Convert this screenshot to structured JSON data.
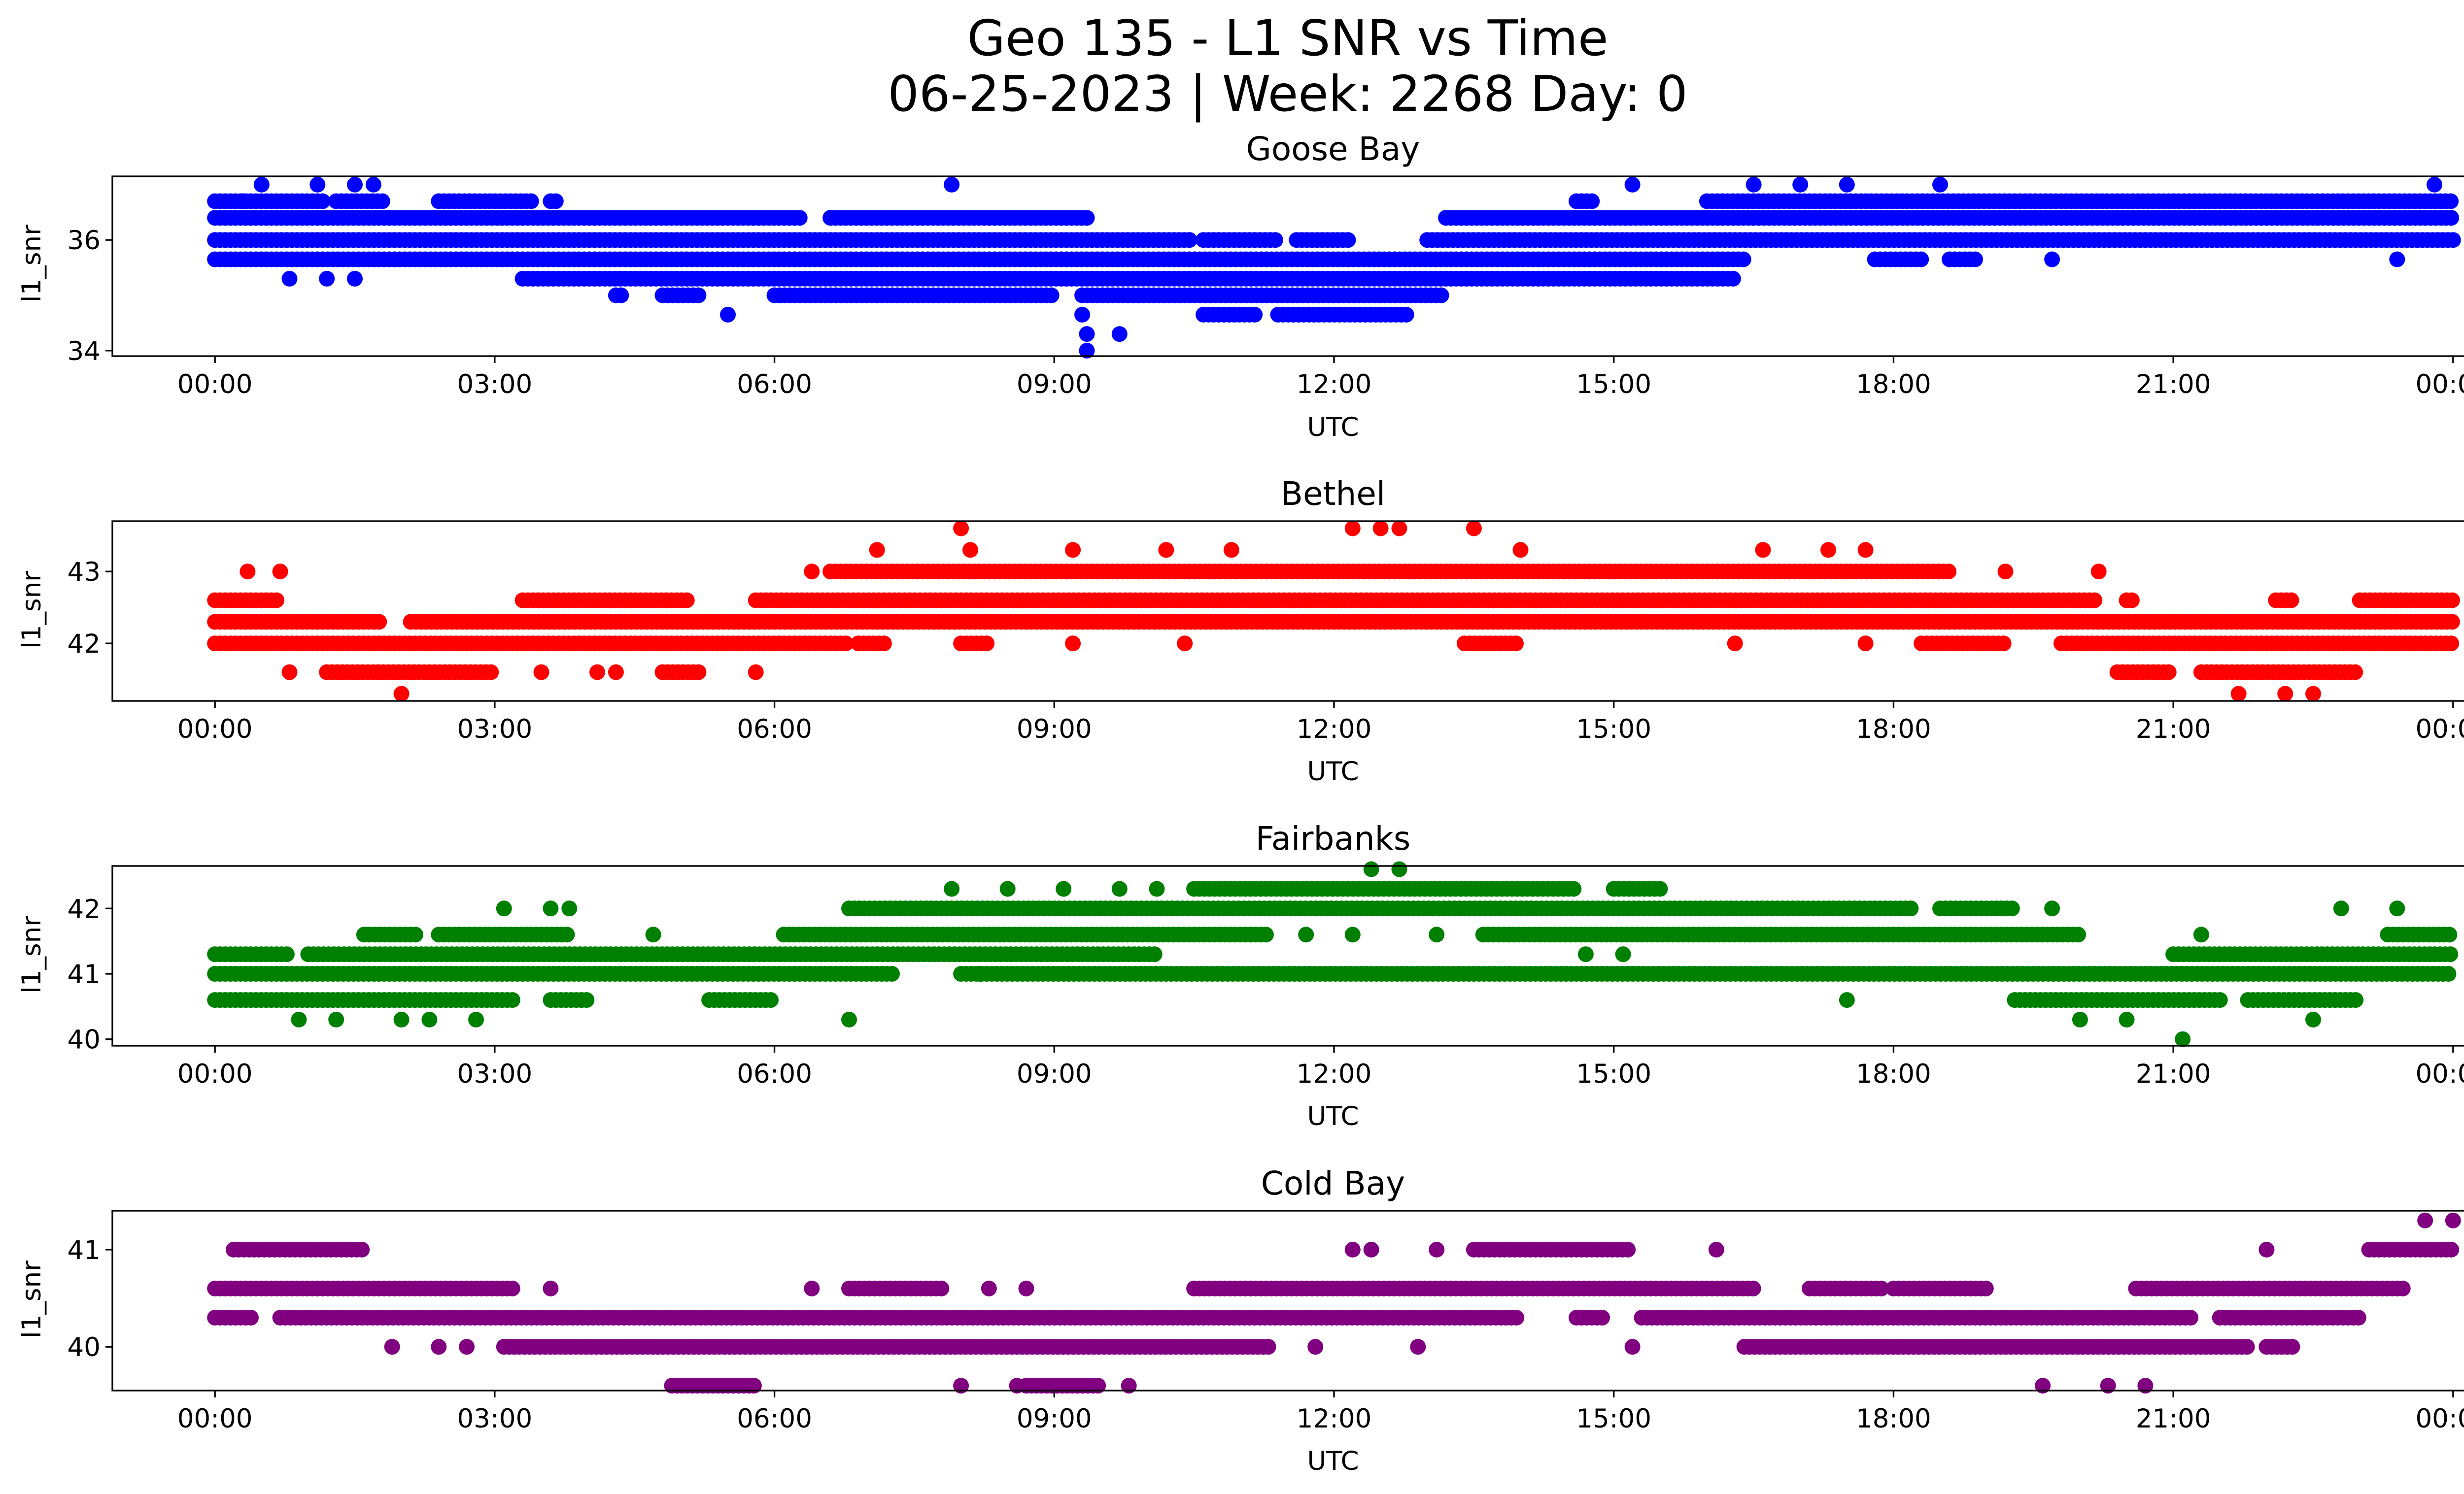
{
  "figure": {
    "title_line1": "Geo 135 - L1 SNR vs Time",
    "title_line2": "06-25-2023 | Week: 2268 Day: 0"
  },
  "chart_data": [
    {
      "type": "scatter",
      "title": "Goose Bay",
      "xlabel": "UTC",
      "ylabel": "l1_snr",
      "x_unit": "hours UTC",
      "xlim": [
        -1.1,
        25.1
      ],
      "ylim": [
        33.9,
        37.15
      ],
      "xticks": [
        0,
        3,
        6,
        9,
        12,
        15,
        18,
        21,
        24
      ],
      "xtick_labels": [
        "00:00",
        "03:00",
        "06:00",
        "09:00",
        "12:00",
        "15:00",
        "18:00",
        "21:00",
        "00:00"
      ],
      "yticks": [
        34,
        36
      ],
      "ytick_labels": [
        "34",
        "36"
      ],
      "color": "#0000ff",
      "bands": [
        {
          "y": 36.7,
          "ranges": [
            [
              0,
              1.2
            ],
            [
              1.3,
              1.8
            ],
            [
              2.4,
              3.4
            ],
            [
              3.6,
              3.7
            ],
            [
              14.6,
              14.8
            ],
            [
              16.0,
              24
            ]
          ]
        },
        {
          "y": 36.4,
          "ranges": [
            [
              0,
              6.3
            ],
            [
              6.6,
              9.4
            ],
            [
              13.2,
              24
            ]
          ]
        },
        {
          "y": 36.0,
          "ranges": [
            [
              0,
              10.5
            ],
            [
              10.6,
              11.4
            ],
            [
              11.6,
              12.2
            ],
            [
              13.0,
              24
            ]
          ]
        },
        {
          "y": 35.65,
          "ranges": [
            [
              0,
              16.4
            ],
            [
              17.8,
              18.3
            ],
            [
              18.6,
              18.9
            ]
          ]
        },
        {
          "y": 35.3,
          "ranges": [
            [
              3.3,
              16.3
            ]
          ]
        },
        {
          "y": 35.0,
          "ranges": [
            [
              4.3,
              4.4
            ],
            [
              4.8,
              5.2
            ],
            [
              6.0,
              9.0
            ],
            [
              9.3,
              13.2
            ]
          ]
        },
        {
          "y": 34.65,
          "ranges": [
            [
              10.6,
              11.2
            ],
            [
              11.4,
              12.8
            ]
          ]
        }
      ],
      "extra_points": [
        [
          0.5,
          37.0
        ],
        [
          1.1,
          37.0
        ],
        [
          1.5,
          37.0
        ],
        [
          1.7,
          37.0
        ],
        [
          7.9,
          37.0
        ],
        [
          15.2,
          37.0
        ],
        [
          16.5,
          37.0
        ],
        [
          17.0,
          37.0
        ],
        [
          17.5,
          37.0
        ],
        [
          18.5,
          37.0
        ],
        [
          23.8,
          37.0
        ],
        [
          0.3,
          36.7
        ],
        [
          0.8,
          35.3
        ],
        [
          1.2,
          35.3
        ],
        [
          1.5,
          35.3
        ],
        [
          5.5,
          34.65
        ],
        [
          9.3,
          34.65
        ],
        [
          9.35,
          34.3
        ],
        [
          9.7,
          34.3
        ],
        [
          9.35,
          34.0
        ],
        [
          19.7,
          35.65
        ],
        [
          23.4,
          35.65
        ]
      ]
    },
    {
      "type": "scatter",
      "title": "Bethel",
      "xlabel": "UTC",
      "ylabel": "l1_snr",
      "x_unit": "hours UTC",
      "xlim": [
        -1.1,
        25.1
      ],
      "ylim": [
        41.2,
        43.7
      ],
      "xticks": [
        0,
        3,
        6,
        9,
        12,
        15,
        18,
        21,
        24
      ],
      "xtick_labels": [
        "00:00",
        "03:00",
        "06:00",
        "09:00",
        "12:00",
        "15:00",
        "18:00",
        "21:00",
        "00:00"
      ],
      "yticks": [
        42,
        43
      ],
      "ytick_labels": [
        "42",
        "43"
      ],
      "color": "#ff0000",
      "bands": [
        {
          "y": 43.0,
          "ranges": [
            [
              6.6,
              18.6
            ]
          ]
        },
        {
          "y": 42.6,
          "ranges": [
            [
              0,
              0.7
            ],
            [
              3.3,
              5.1
            ],
            [
              5.8,
              20.2
            ],
            [
              20.5,
              20.6
            ],
            [
              22.1,
              22.3
            ],
            [
              23.0,
              24
            ]
          ]
        },
        {
          "y": 42.3,
          "ranges": [
            [
              0,
              1.8
            ],
            [
              2.1,
              24
            ]
          ]
        },
        {
          "y": 42.0,
          "ranges": [
            [
              0,
              6.8
            ],
            [
              6.9,
              7.2
            ],
            [
              8.0,
              8.3
            ],
            [
              13.4,
              14.0
            ],
            [
              18.3,
              19.2
            ],
            [
              19.8,
              24
            ]
          ]
        },
        {
          "y": 41.6,
          "ranges": [
            [
              1.2,
              3.0
            ],
            [
              4.8,
              5.2
            ],
            [
              20.4,
              21.0
            ],
            [
              21.3,
              23.0
            ]
          ]
        }
      ],
      "extra_points": [
        [
          0.35,
          43.0
        ],
        [
          0.7,
          43.0
        ],
        [
          6.4,
          43.0
        ],
        [
          7.1,
          43.3
        ],
        [
          8.0,
          43.6
        ],
        [
          8.1,
          43.3
        ],
        [
          9.2,
          43.3
        ],
        [
          10.2,
          43.3
        ],
        [
          10.9,
          43.3
        ],
        [
          12.2,
          43.6
        ],
        [
          12.5,
          43.6
        ],
        [
          12.7,
          43.6
        ],
        [
          13.5,
          43.6
        ],
        [
          14.0,
          43.3
        ],
        [
          16.6,
          43.3
        ],
        [
          17.3,
          43.3
        ],
        [
          17.7,
          43.3
        ],
        [
          19.2,
          43.0
        ],
        [
          20.2,
          43.0
        ],
        [
          0.8,
          41.6
        ],
        [
          3.5,
          41.6
        ],
        [
          4.1,
          41.6
        ],
        [
          4.3,
          41.6
        ],
        [
          5.8,
          41.6
        ],
        [
          2.0,
          41.3
        ],
        [
          9.2,
          42.0
        ],
        [
          10.4,
          42.0
        ],
        [
          16.3,
          42.0
        ],
        [
          17.7,
          42.0
        ],
        [
          21.7,
          41.3
        ],
        [
          22.2,
          41.3
        ],
        [
          22.5,
          41.3
        ]
      ]
    },
    {
      "type": "scatter",
      "title": "Fairbanks",
      "xlabel": "UTC",
      "ylabel": "l1_snr",
      "x_unit": "hours UTC",
      "xlim": [
        -1.1,
        25.1
      ],
      "ylim": [
        39.9,
        42.65
      ],
      "xticks": [
        0,
        3,
        6,
        9,
        12,
        15,
        18,
        21,
        24
      ],
      "xtick_labels": [
        "00:00",
        "03:00",
        "06:00",
        "09:00",
        "12:00",
        "15:00",
        "18:00",
        "21:00",
        "00:00"
      ],
      "yticks": [
        40,
        41,
        42
      ],
      "ytick_labels": [
        "40",
        "41",
        "42"
      ],
      "color": "#008000",
      "bands": [
        {
          "y": 42.3,
          "ranges": [
            [
              10.5,
              14.6
            ],
            [
              15.0,
              15.5
            ]
          ]
        },
        {
          "y": 42.0,
          "ranges": [
            [
              6.8,
              18.2
            ],
            [
              18.5,
              19.3
            ]
          ]
        },
        {
          "y": 41.6,
          "ranges": [
            [
              1.6,
              2.2
            ],
            [
              2.4,
              3.8
            ],
            [
              6.1,
              11.3
            ],
            [
              13.6,
              20.0
            ],
            [
              23.3,
              24
            ]
          ]
        },
        {
          "y": 41.3,
          "ranges": [
            [
              0,
              0.8
            ],
            [
              1.0,
              10.1
            ],
            [
              21.0,
              24
            ]
          ]
        },
        {
          "y": 41.0,
          "ranges": [
            [
              0,
              7.3
            ],
            [
              8.0,
              24
            ]
          ]
        },
        {
          "y": 40.6,
          "ranges": [
            [
              0,
              3.2
            ],
            [
              3.6,
              4.0
            ],
            [
              5.3,
              6.0
            ],
            [
              19.3,
              21.5
            ],
            [
              21.8,
              23.0
            ]
          ]
        }
      ],
      "extra_points": [
        [
          3.1,
          42.0
        ],
        [
          3.6,
          42.0
        ],
        [
          3.8,
          42.0
        ],
        [
          12.4,
          42.6
        ],
        [
          12.7,
          42.6
        ],
        [
          7.9,
          42.3
        ],
        [
          8.5,
          42.3
        ],
        [
          9.1,
          42.3
        ],
        [
          9.7,
          42.3
        ],
        [
          10.1,
          42.3
        ],
        [
          4.7,
          41.6
        ],
        [
          11.7,
          41.6
        ],
        [
          12.2,
          41.6
        ],
        [
          13.1,
          41.6
        ],
        [
          21.3,
          41.6
        ],
        [
          22.8,
          42.0
        ],
        [
          23.4,
          42.0
        ],
        [
          19.7,
          42.0
        ],
        [
          0.9,
          40.3
        ],
        [
          1.3,
          40.3
        ],
        [
          2.0,
          40.3
        ],
        [
          2.3,
          40.3
        ],
        [
          2.8,
          40.3
        ],
        [
          6.8,
          40.3
        ],
        [
          20.0,
          40.3
        ],
        [
          20.5,
          40.3
        ],
        [
          21.1,
          40.0
        ],
        [
          22.5,
          40.3
        ],
        [
          17.5,
          40.6
        ],
        [
          8.2,
          41.0
        ],
        [
          14.7,
          41.3
        ],
        [
          15.1,
          41.3
        ]
      ]
    },
    {
      "type": "scatter",
      "title": "Cold Bay",
      "xlabel": "UTC",
      "ylabel": "l1_snr",
      "x_unit": "hours UTC",
      "xlim": [
        -1.1,
        25.1
      ],
      "ylim": [
        39.55,
        41.4
      ],
      "xticks": [
        0,
        3,
        6,
        9,
        12,
        15,
        18,
        21,
        24
      ],
      "xtick_labels": [
        "00:00",
        "03:00",
        "06:00",
        "09:00",
        "12:00",
        "15:00",
        "18:00",
        "21:00",
        "00:00"
      ],
      "yticks": [
        40,
        41
      ],
      "ytick_labels": [
        "40",
        "41"
      ],
      "color": "#800080",
      "bands": [
        {
          "y": 41.0,
          "ranges": [
            [
              0.2,
              1.6
            ],
            [
              13.5,
              15.2
            ],
            [
              23.1,
              24
            ]
          ]
        },
        {
          "y": 40.6,
          "ranges": [
            [
              0,
              3.2
            ],
            [
              6.8,
              7.8
            ],
            [
              10.5,
              16.5
            ],
            [
              17.1,
              17.9
            ],
            [
              18.0,
              19.0
            ],
            [
              20.6,
              23.5
            ]
          ]
        },
        {
          "y": 40.3,
          "ranges": [
            [
              0,
              0.4
            ],
            [
              0.7,
              14.0
            ],
            [
              14.6,
              14.9
            ],
            [
              15.3,
              21.2
            ],
            [
              21.5,
              23.0
            ]
          ]
        },
        {
          "y": 40.0,
          "ranges": [
            [
              3.1,
              11.3
            ],
            [
              16.4,
              21.8
            ],
            [
              22.0,
              22.3
            ]
          ]
        },
        {
          "y": 39.6,
          "ranges": [
            [
              4.9,
              5.8
            ],
            [
              8.7,
              9.5
            ]
          ]
        }
      ],
      "extra_points": [
        [
          1.9,
          40.0
        ],
        [
          2.4,
          40.0
        ],
        [
          2.7,
          40.0
        ],
        [
          3.6,
          40.6
        ],
        [
          6.4,
          40.6
        ],
        [
          8.3,
          40.6
        ],
        [
          8.7,
          40.6
        ],
        [
          12.2,
          41.0
        ],
        [
          12.4,
          41.0
        ],
        [
          13.1,
          41.0
        ],
        [
          16.1,
          41.0
        ],
        [
          22.0,
          41.0
        ],
        [
          11.8,
          40.0
        ],
        [
          12.9,
          40.0
        ],
        [
          15.2,
          40.0
        ],
        [
          8.0,
          39.6
        ],
        [
          8.6,
          39.6
        ],
        [
          9.8,
          39.6
        ],
        [
          19.6,
          39.6
        ],
        [
          20.3,
          39.6
        ],
        [
          20.7,
          39.6
        ],
        [
          23.7,
          41.3
        ],
        [
          24.0,
          41.3
        ]
      ]
    }
  ]
}
